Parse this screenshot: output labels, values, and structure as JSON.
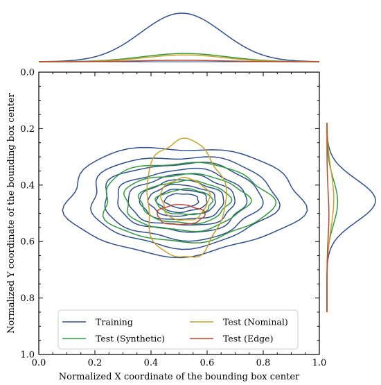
{
  "chart_data": {
    "type": "contour",
    "xlabel": "Normalized X coordinate of the bounding box center",
    "ylabel": "Normalized Y coordinate of the bounding box center",
    "xlim": [
      0.0,
      1.0
    ],
    "ylim": [
      1.0,
      0.0
    ],
    "y_inverted": true,
    "xticks": [
      "0.0",
      "0.2",
      "0.4",
      "0.6",
      "0.8",
      "1.0"
    ],
    "yticks": [
      "0.0",
      "0.2",
      "0.4",
      "0.6",
      "0.8",
      "1.0"
    ],
    "grid": false,
    "legend_position": "bottom-center",
    "series": [
      {
        "name": "Training",
        "color": "#2d4e8f",
        "center": [
          0.51,
          0.455
        ],
        "contour_levels": [
          {
            "rx": 0.42,
            "ry": 0.19
          },
          {
            "rx": 0.33,
            "ry": 0.16
          },
          {
            "rx": 0.28,
            "ry": 0.135
          },
          {
            "rx": 0.23,
            "ry": 0.11
          },
          {
            "rx": 0.19,
            "ry": 0.09
          },
          {
            "rx": 0.15,
            "ry": 0.07
          },
          {
            "rx": 0.12,
            "ry": 0.055
          },
          {
            "rx": 0.09,
            "ry": 0.04
          },
          {
            "rx": 0.06,
            "ry": 0.025
          }
        ],
        "marginal_x_peak": 1.0,
        "marginal_x_sigma": 0.145,
        "marginal_y_peak": 1.0,
        "marginal_y_sigma": 0.075
      },
      {
        "name": "Test (Synthetic)",
        "color": "#2f9a3c",
        "center": [
          0.52,
          0.46
        ],
        "contour_levels": [
          {
            "rx": 0.3,
            "ry": 0.14
          },
          {
            "rx": 0.22,
            "ry": 0.1
          },
          {
            "rx": 0.16,
            "ry": 0.075
          },
          {
            "rx": 0.1,
            "ry": 0.045
          }
        ],
        "marginal_x_peak": 0.17,
        "marginal_x_sigma": 0.15,
        "marginal_y_peak": 0.22,
        "marginal_y_sigma": 0.08
      },
      {
        "name": "Test (Nominal)",
        "color": "#c9a227",
        "center": [
          0.52,
          0.45
        ],
        "contour_levels": [
          {
            "rx": 0.14,
            "ry": 0.21
          },
          {
            "rx": 0.085,
            "ry": 0.075
          }
        ],
        "marginal_x_peak": 0.14,
        "marginal_x_sigma": 0.14,
        "marginal_y_peak": 0.14,
        "marginal_y_sigma": 0.1
      },
      {
        "name": "Test (Edge)",
        "color": "#c0452a",
        "center": [
          0.505,
          0.505
        ],
        "contour_levels": [
          {
            "rx": 0.085,
            "ry": 0.035
          }
        ],
        "marginal_x_peak": 0.03,
        "marginal_x_sigma": 0.15,
        "marginal_y_peak": 0.04,
        "marginal_y_sigma": 0.08
      }
    ]
  }
}
